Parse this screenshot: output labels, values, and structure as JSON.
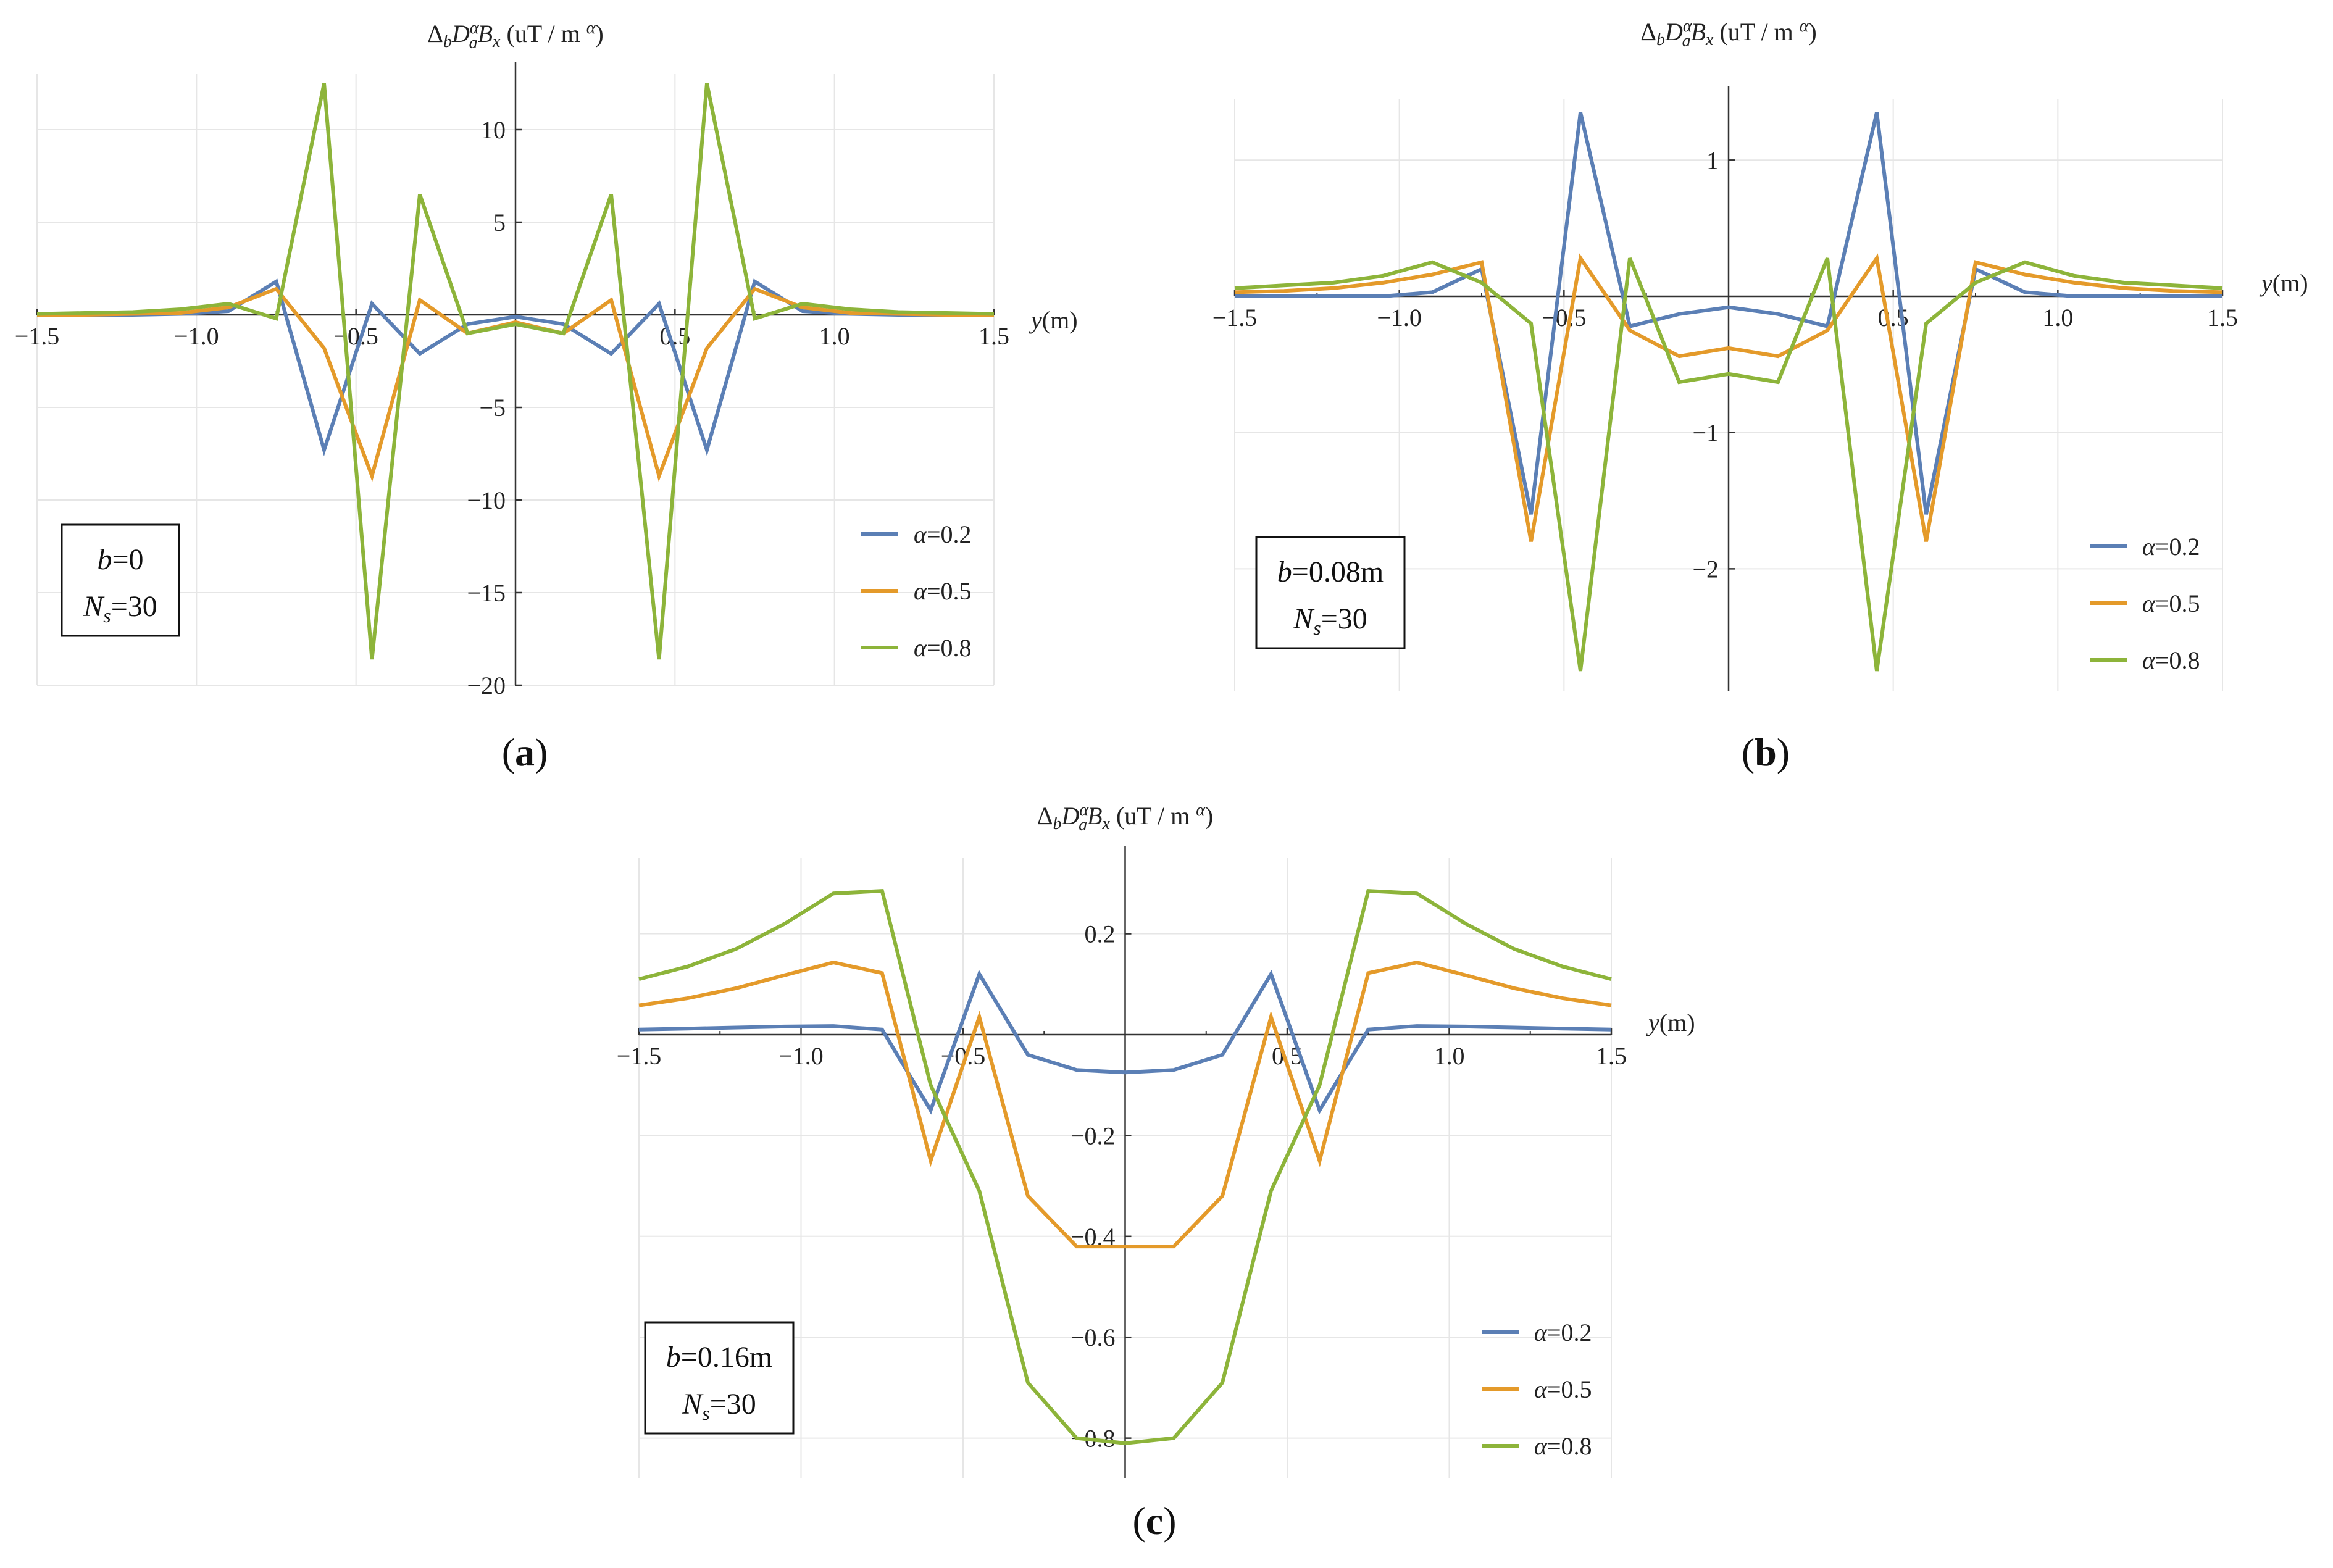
{
  "figure": {
    "ylabel_prefix": "Δ",
    "ylabel_sub_b": "b",
    "ylabel_D": "D",
    "ylabel_alpha": "α",
    "ylabel_sub_a": "a",
    "ylabel_B": "B",
    "ylabel_sub_x": "x",
    "ylabel_units": " (uT / m",
    "ylabel_units_alpha": "α",
    "ylabel_units_close": ")",
    "xlabel": "y(m)"
  },
  "colors": {
    "alpha_0_2": "#5b7fb5",
    "alpha_0_5": "#e49a2a",
    "alpha_0_8": "#8db43a",
    "grid": "#e6e6e6",
    "axis": "#333333",
    "text": "#222222"
  },
  "legend": {
    "entries": [
      "α=0.2",
      "α=0.5",
      "α=0.8"
    ]
  },
  "chart_data": [
    {
      "type": "line",
      "panel_label": "(a)",
      "annotation_line1": "b=0",
      "annotation_line2": "Ns=30",
      "x": [
        -1.5,
        -1.35,
        -1.2,
        -1.05,
        -0.9,
        -0.75,
        -0.6,
        -0.45,
        -0.3,
        -0.15,
        0,
        0.15,
        0.3,
        0.45,
        0.6,
        0.75,
        0.9,
        1.05,
        1.2,
        1.35,
        1.5
      ],
      "series": [
        {
          "name": "α=0.2",
          "values": [
            0,
            0,
            0,
            0.05,
            0.2,
            1.8,
            -7.3,
            0.6,
            -2.1,
            -0.5,
            -0.1,
            -0.5,
            -2.1,
            0.6,
            -7.3,
            1.8,
            0.2,
            0.05,
            0,
            0,
            0
          ]
        },
        {
          "name": "α=0.5",
          "values": [
            0,
            0,
            0.05,
            0.1,
            0.4,
            1.4,
            -1.8,
            -8.7,
            0.8,
            -1.0,
            -0.4,
            -1.0,
            0.8,
            -8.7,
            -1.8,
            1.4,
            0.4,
            0.1,
            0.05,
            0,
            0
          ]
        },
        {
          "name": "α=0.8",
          "values": [
            0.05,
            0.1,
            0.15,
            0.3,
            0.6,
            -0.2,
            12.5,
            -18.6,
            6.5,
            -1.0,
            -0.5,
            -1.0,
            6.5,
            -18.6,
            12.5,
            -0.2,
            0.6,
            0.3,
            0.15,
            0.1,
            0.05
          ]
        }
      ],
      "xlim": [
        -1.5,
        1.5
      ],
      "ylim": [
        -20,
        13
      ],
      "xticks": [
        -1.5,
        -1.0,
        -0.5,
        0.5,
        1.0,
        1.5
      ],
      "xtick_labels": [
        "−1.5",
        "−1.0",
        "−0.5",
        "0.5",
        "1.0",
        "1.5"
      ],
      "yticks": [
        10,
        5,
        -5,
        -10,
        -15,
        -20
      ],
      "ytick_labels": [
        "10",
        "5",
        "−5",
        "−10",
        "−15",
        "−20"
      ],
      "gridlines_y": [
        10,
        5,
        -5,
        -10,
        -15,
        -20
      ]
    },
    {
      "type": "line",
      "panel_label": "(b)",
      "annotation_line1": "b=0.08m",
      "annotation_line2": "Ns=30",
      "x": [
        -1.5,
        -1.35,
        -1.2,
        -1.05,
        -0.9,
        -0.75,
        -0.6,
        -0.45,
        -0.3,
        -0.15,
        0,
        0.15,
        0.3,
        0.45,
        0.6,
        0.75,
        0.9,
        1.05,
        1.2,
        1.35,
        1.5
      ],
      "series": [
        {
          "name": "α=0.2",
          "values": [
            0,
            0,
            0,
            0,
            0.03,
            0.2,
            -1.6,
            1.35,
            -0.22,
            -0.13,
            -0.08,
            -0.13,
            -0.22,
            1.35,
            -1.6,
            0.2,
            0.03,
            0,
            0,
            0,
            0
          ]
        },
        {
          "name": "α=0.5",
          "values": [
            0.03,
            0.04,
            0.06,
            0.1,
            0.16,
            0.25,
            -1.8,
            0.28,
            -0.25,
            -0.44,
            -0.38,
            -0.44,
            -0.25,
            0.28,
            -1.8,
            0.25,
            0.16,
            0.1,
            0.06,
            0.04,
            0.03
          ]
        },
        {
          "name": "α=0.8",
          "values": [
            0.06,
            0.08,
            0.1,
            0.15,
            0.25,
            0.1,
            -0.2,
            -2.75,
            0.28,
            -0.63,
            -0.57,
            -0.63,
            0.28,
            -2.75,
            -0.2,
            0.1,
            0.25,
            0.15,
            0.1,
            0.08,
            0.06
          ]
        }
      ],
      "xlim": [
        -1.5,
        1.5
      ],
      "ylim": [
        -2.9,
        1.45
      ],
      "xticks": [
        -1.5,
        -1.0,
        -0.5,
        0.5,
        1.0,
        1.5
      ],
      "xtick_labels": [
        "−1.5",
        "−1.0",
        "−0.5",
        "0.5",
        "1.0",
        "1.5"
      ],
      "yticks": [
        1,
        -1,
        -2
      ],
      "ytick_labels": [
        "1",
        "−1",
        "−2"
      ],
      "gridlines_y": [
        1,
        -1,
        -2
      ]
    },
    {
      "type": "line",
      "panel_label": "(c)",
      "annotation_line1": "b=0.16m",
      "annotation_line2": "Ns=30",
      "x": [
        -1.5,
        -1.35,
        -1.2,
        -1.05,
        -0.9,
        -0.75,
        -0.6,
        -0.45,
        -0.3,
        -0.15,
        0,
        0.15,
        0.3,
        0.45,
        0.6,
        0.75,
        0.9,
        1.05,
        1.2,
        1.35,
        1.5
      ],
      "series": [
        {
          "name": "α=0.2",
          "values": [
            0.01,
            0.012,
            0.014,
            0.016,
            0.017,
            0.01,
            -0.15,
            0.12,
            -0.04,
            -0.07,
            -0.075,
            -0.07,
            -0.04,
            0.12,
            -0.15,
            0.01,
            0.017,
            0.016,
            0.014,
            0.012,
            0.01
          ]
        },
        {
          "name": "α=0.5",
          "values": [
            0.058,
            0.072,
            0.092,
            0.118,
            0.143,
            0.122,
            -0.25,
            0.035,
            -0.32,
            -0.42,
            -0.42,
            -0.42,
            -0.32,
            0.035,
            -0.25,
            0.122,
            0.143,
            0.118,
            0.092,
            0.072,
            0.058
          ]
        },
        {
          "name": "α=0.8",
          "values": [
            0.11,
            0.135,
            0.17,
            0.22,
            0.28,
            0.285,
            -0.1,
            -0.31,
            -0.69,
            -0.8,
            -0.81,
            -0.8,
            -0.69,
            -0.31,
            -0.1,
            0.285,
            0.28,
            0.22,
            0.17,
            0.135,
            0.11
          ]
        }
      ],
      "xlim": [
        -1.5,
        1.5
      ],
      "ylim": [
        -0.88,
        0.35
      ],
      "xticks": [
        -1.5,
        -1.0,
        -0.5,
        0.5,
        1.0,
        1.5
      ],
      "xtick_labels": [
        "−1.5",
        "−1.0",
        "−0.5",
        "0.5",
        "1.0",
        "1.5"
      ],
      "yticks": [
        0.2,
        -0.2,
        -0.4,
        -0.6,
        -0.8
      ],
      "ytick_labels": [
        "0.2",
        "−0.2",
        "−0.4",
        "−0.6",
        "−0.8"
      ],
      "gridlines_y": [
        0.2,
        -0.2,
        -0.4,
        -0.6,
        -0.8
      ]
    }
  ]
}
